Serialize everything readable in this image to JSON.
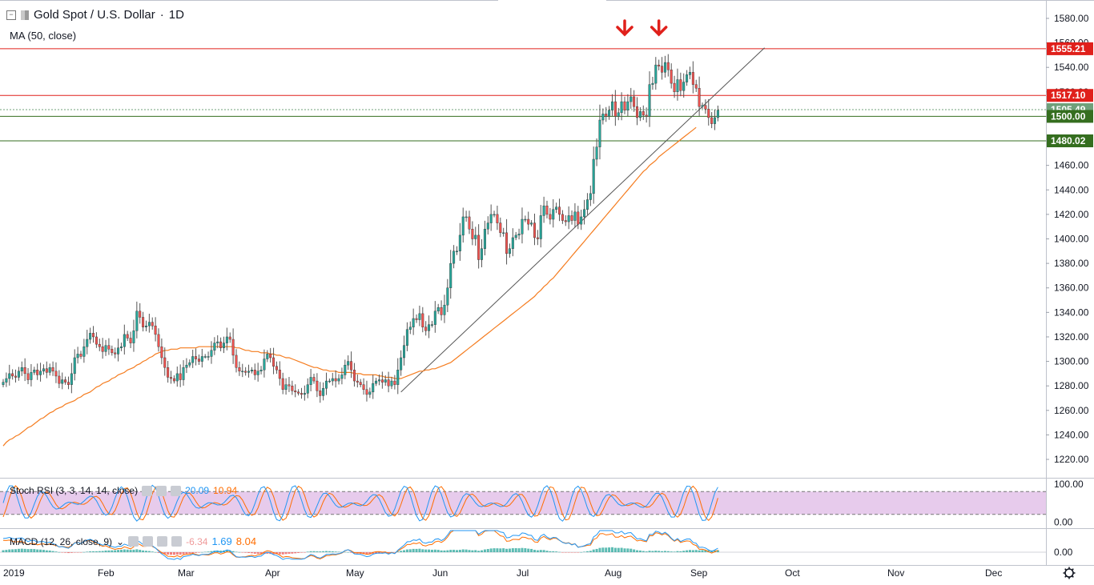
{
  "header": {
    "title": "Gold Spot / U.S. Dollar",
    "interval": "1D",
    "ma_label": "MA (50, close)"
  },
  "indicators": {
    "stoch_rsi": {
      "label": "Stoch RSI (3, 3, 14, 14, close)",
      "k_value": "20.09",
      "d_value": "10.94"
    },
    "macd": {
      "label": "MACD (12, 26, close, 9)",
      "hist_value": "-6.34",
      "macd_value": "1.69",
      "signal_value": "8.04"
    }
  },
  "colors": {
    "up": "#26a69a",
    "down": "#ef5350",
    "ma": "#f57c1f",
    "red_level": "#e0201b",
    "green_level": "#356e1f",
    "trendline": "#555555",
    "rsi_k": "#2196f3",
    "rsi_d": "#ff6d00",
    "rsi_band": "#e1bee7",
    "last_price": "#6fa07a"
  },
  "chart_data": {
    "type": "candlestick",
    "title": "Gold Spot / U.S. Dollar · 1D",
    "x_ticks": [
      "2019",
      "Feb",
      "Mar",
      "Apr",
      "May",
      "Jun",
      "Jul",
      "Aug",
      "Sep",
      "Oct",
      "Nov",
      "Dec"
    ],
    "y_ticks": [
      1220,
      1240,
      1260,
      1280,
      1300,
      1320,
      1340,
      1360,
      1380,
      1400,
      1420,
      1440,
      1460,
      1480,
      1500,
      1520,
      1540,
      1560,
      1580
    ],
    "y_tick_labels": [
      "1220.00",
      "1240.00",
      "1260.00",
      "1280.00",
      "1300.00",
      "1320.00",
      "1340.00",
      "1360.00",
      "1380.00",
      "1400.00",
      "1420.00",
      "1440.00",
      "1460.00",
      "1480.00",
      "1500.00",
      "1520.00",
      "1540.00",
      "1560.00",
      "1580.00"
    ],
    "ylim": [
      1205,
      1595
    ],
    "closes": [
      1283,
      1286,
      1290,
      1288,
      1287,
      1292,
      1295,
      1290,
      1285,
      1291,
      1293,
      1289,
      1292,
      1294,
      1291,
      1295,
      1292,
      1288,
      1282,
      1285,
      1283,
      1281,
      1290,
      1303,
      1306,
      1304,
      1312,
      1318,
      1323,
      1320,
      1314,
      1312,
      1308,
      1313,
      1310,
      1307,
      1306,
      1311,
      1312,
      1322,
      1319,
      1315,
      1325,
      1341,
      1336,
      1328,
      1329,
      1332,
      1329,
      1322,
      1312,
      1303,
      1295,
      1287,
      1286,
      1284,
      1290,
      1285,
      1295,
      1297,
      1299,
      1304,
      1302,
      1300,
      1304,
      1304,
      1304,
      1309,
      1315,
      1316,
      1311,
      1315,
      1320,
      1318,
      1305,
      1295,
      1292,
      1292,
      1291,
      1292,
      1293,
      1289,
      1292,
      1293,
      1302,
      1306,
      1303,
      1296,
      1293,
      1286,
      1277,
      1281,
      1280,
      1276,
      1275,
      1274,
      1273,
      1274,
      1281,
      1287,
      1284,
      1276,
      1272,
      1278,
      1284,
      1284,
      1286,
      1284,
      1286,
      1289,
      1297,
      1300,
      1293,
      1284,
      1283,
      1281,
      1277,
      1273,
      1275,
      1282,
      1284,
      1285,
      1283,
      1285,
      1280,
      1284,
      1281,
      1293,
      1303,
      1313,
      1326,
      1328,
      1335,
      1334,
      1339,
      1328,
      1325,
      1330,
      1330,
      1341,
      1344,
      1338,
      1346,
      1360,
      1380,
      1390,
      1390,
      1403,
      1418,
      1418,
      1408,
      1400,
      1403,
      1383,
      1392,
      1408,
      1413,
      1420,
      1420,
      1413,
      1405,
      1405,
      1388,
      1392,
      1401,
      1403,
      1404,
      1416,
      1416,
      1412,
      1413,
      1401,
      1400,
      1419,
      1427,
      1420,
      1416,
      1424,
      1426,
      1420,
      1415,
      1414,
      1419,
      1415,
      1422,
      1412,
      1418,
      1424,
      1432,
      1437,
      1465,
      1475,
      1497,
      1502,
      1500,
      1505,
      1512,
      1500,
      1503,
      1512,
      1505,
      1512,
      1516,
      1508,
      1499,
      1504,
      1501,
      1500,
      1526,
      1527,
      1542,
      1541,
      1536,
      1544,
      1538,
      1527,
      1520,
      1530,
      1521,
      1528,
      1534,
      1536,
      1526,
      1523,
      1508,
      1509,
      1506,
      1499,
      1494,
      1499,
      1505
    ],
    "ma50_start": 1231,
    "ma50": [
      1234,
      1236,
      1237,
      1239,
      1240,
      1242,
      1244,
      1246,
      1247,
      1249,
      1251,
      1253,
      1254,
      1256,
      1258,
      1259,
      1261,
      1262,
      1263,
      1265,
      1266,
      1267,
      1268,
      1270,
      1271,
      1273,
      1274,
      1275,
      1277,
      1279,
      1280,
      1282,
      1283,
      1284,
      1286,
      1287,
      1289,
      1290,
      1291,
      1293,
      1294,
      1295,
      1297,
      1298,
      1300,
      1301,
      1303,
      1304,
      1306,
      1307,
      1308,
      1309,
      1309,
      1310,
      1310,
      1310,
      1311,
      1311,
      1311,
      1311,
      1311,
      1311,
      1312,
      1312,
      1312,
      1312,
      1312,
      1312,
      1312,
      1312,
      1312,
      1312,
      1312,
      1312,
      1311,
      1311,
      1310,
      1309,
      1309,
      1308,
      1308,
      1308,
      1307,
      1307,
      1307,
      1306,
      1306,
      1305,
      1305,
      1304,
      1303,
      1303,
      1302,
      1301,
      1300,
      1299,
      1298,
      1297,
      1296,
      1295,
      1295,
      1294,
      1293,
      1293,
      1292,
      1292,
      1292,
      1291,
      1291,
      1291,
      1291,
      1291,
      1290,
      1290,
      1290,
      1289,
      1289,
      1289,
      1289,
      1289,
      1288,
      1288,
      1287,
      1287,
      1287,
      1286,
      1286,
      1286,
      1287,
      1288,
      1289,
      1290,
      1291,
      1292,
      1292,
      1293,
      1293,
      1294,
      1294,
      1295,
      1296,
      1297,
      1298,
      1299,
      1301,
      1303,
      1305,
      1307,
      1309,
      1311,
      1313,
      1315,
      1317,
      1319,
      1321,
      1323,
      1325,
      1327,
      1329,
      1331,
      1333,
      1335,
      1337,
      1339,
      1341,
      1343,
      1345,
      1347,
      1349,
      1351,
      1353,
      1356,
      1358,
      1361,
      1363,
      1366,
      1368,
      1371,
      1374,
      1377,
      1380,
      1383,
      1386,
      1389,
      1392,
      1395,
      1398,
      1401,
      1404,
      1407,
      1410,
      1413,
      1416,
      1419,
      1422,
      1425,
      1428,
      1431,
      1434,
      1437,
      1440,
      1443,
      1446,
      1449,
      1452,
      1455,
      1457,
      1460,
      1462,
      1464,
      1467,
      1469,
      1471,
      1473,
      1475,
      1477,
      1479,
      1481,
      1483,
      1485,
      1487,
      1489,
      1491
    ],
    "levels": [
      {
        "label": "1555.21",
        "value": 1555.21,
        "kind": "resistance"
      },
      {
        "label": "1517.10",
        "value": 1517.1,
        "kind": "resistance"
      },
      {
        "label": "1505.49",
        "value": 1505.49,
        "kind": "last"
      },
      {
        "label": "1500.00",
        "value": 1500.0,
        "kind": "support"
      },
      {
        "label": "1480.02",
        "value": 1480.02,
        "kind": "support"
      }
    ],
    "trendline": {
      "from_index": 128,
      "from_value": 1275,
      "to_index": 245,
      "to_value": 1556
    },
    "markers": [
      {
        "index": 200,
        "label": "down-arrow"
      },
      {
        "index": 211,
        "label": "down-arrow"
      }
    ],
    "stoch_rsi": {
      "ylim": [
        -10,
        110
      ],
      "y_ticks": [
        0,
        100
      ],
      "y_tick_labels": [
        "0.00",
        "100.00"
      ],
      "band": [
        20,
        80
      ]
    },
    "macd": {
      "y_ticks": [
        0
      ],
      "y_tick_labels": [
        "0.00"
      ]
    }
  }
}
